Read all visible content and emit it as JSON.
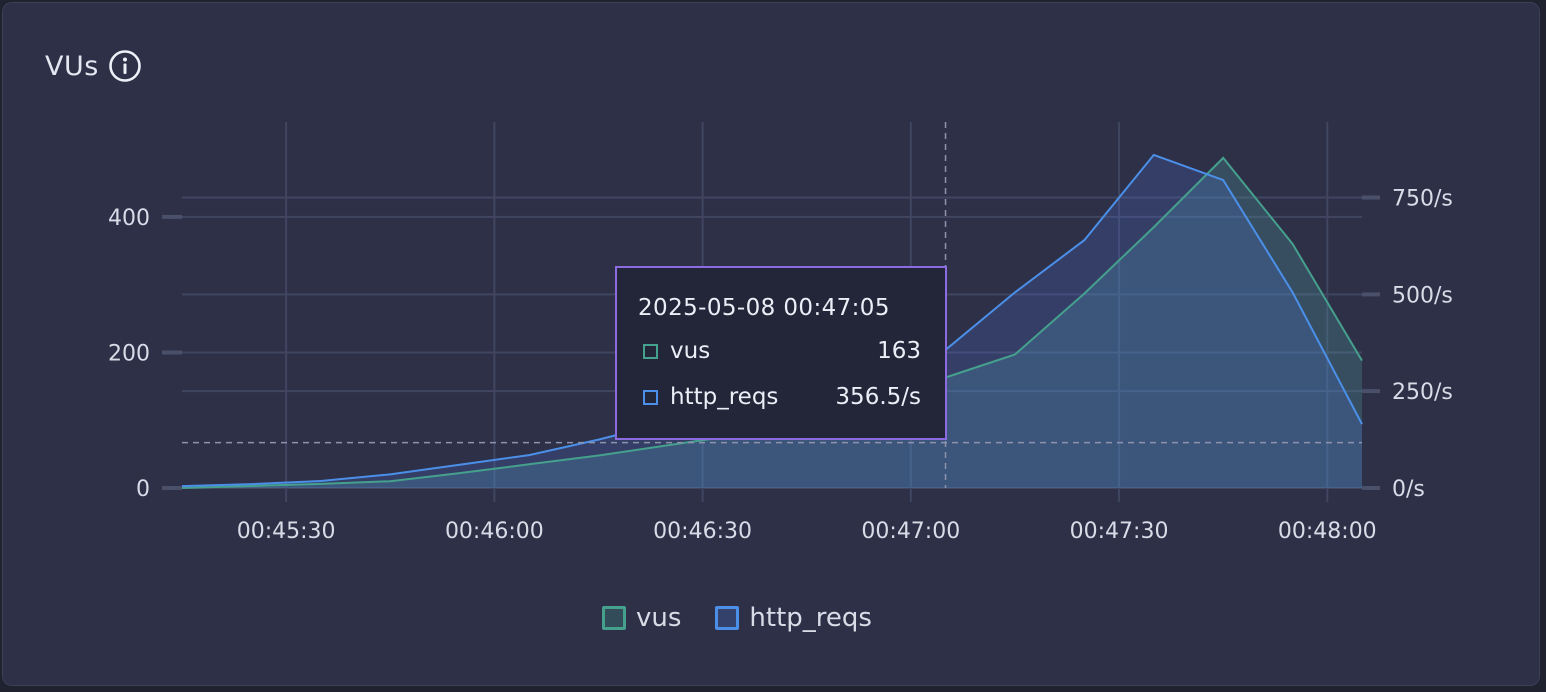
{
  "panel": {
    "title": "VUs",
    "info_icon": "info-icon"
  },
  "tooltip": {
    "timestamp": "2025-05-08 00:47:05",
    "rows": [
      {
        "name": "vus",
        "value": "163"
      },
      {
        "name": "http_reqs",
        "value": "356.5/s"
      }
    ]
  },
  "colors": {
    "vus": "#45a08d",
    "http_reqs": "#4b8fe8",
    "grid": "#404560",
    "tooltip_border": "#8b6be0"
  },
  "chart_data": {
    "type": "area",
    "x_unit": "time",
    "x_ticks": [
      "00:45:30",
      "00:46:00",
      "00:46:30",
      "00:47:00",
      "00:47:30",
      "00:48:00"
    ],
    "x_range": [
      "00:45:15",
      "00:48:05"
    ],
    "y_left": {
      "ticks": [
        "0",
        "200",
        "400"
      ],
      "range": [
        0,
        540
      ]
    },
    "y_right": {
      "ticks": [
        "0/s",
        "250/s",
        "500/s",
        "750/s"
      ],
      "range": [
        0,
        945
      ]
    },
    "threshold_left": 67,
    "cursor_time": "00:47:05",
    "series": [
      {
        "name": "vus",
        "axis": "left",
        "x": [
          "00:45:15",
          "00:45:25",
          "00:45:35",
          "00:45:45",
          "00:45:55",
          "00:46:05",
          "00:46:15",
          "00:46:25",
          "00:46:35",
          "00:46:45",
          "00:46:55",
          "00:47:05",
          "00:47:15",
          "00:47:25",
          "00:47:35",
          "00:47:45",
          "00:47:55",
          "00:48:05"
        ],
        "values": [
          0,
          3,
          6,
          10,
          22,
          35,
          48,
          63,
          78,
          95,
          128,
          163,
          197,
          287,
          385,
          487,
          360,
          188
        ]
      },
      {
        "name": "http_reqs",
        "axis": "right",
        "x": [
          "00:45:15",
          "00:45:25",
          "00:45:35",
          "00:45:45",
          "00:45:55",
          "00:46:05",
          "00:46:15",
          "00:46:25",
          "00:46:35",
          "00:46:45",
          "00:46:55",
          "00:47:05",
          "00:47:15",
          "00:47:25",
          "00:47:35",
          "00:47:45",
          "00:47:55",
          "00:48:05"
        ],
        "values": [
          5,
          10,
          18,
          35,
          60,
          85,
          125,
          170,
          215,
          265,
          320,
          356.5,
          505,
          640,
          860,
          795,
          505,
          165
        ]
      }
    ],
    "legend": [
      "vus",
      "http_reqs"
    ],
    "legend_position": "bottom-center",
    "grid": true
  }
}
